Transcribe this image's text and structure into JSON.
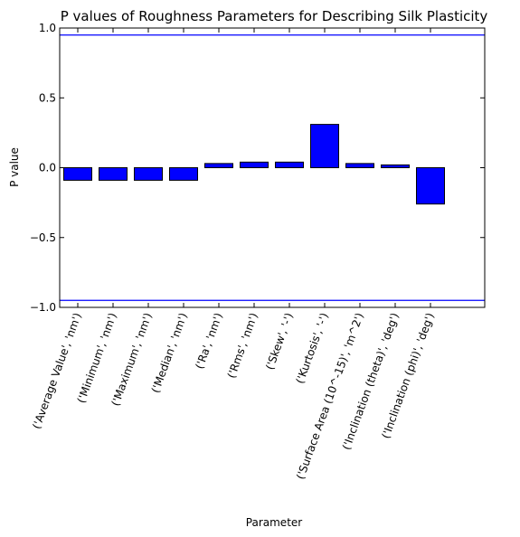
{
  "chart_data": {
    "type": "bar",
    "title": "P values of Roughness Parameters for Describing Silk Plasticity",
    "xlabel": "Parameter",
    "ylabel": "P value",
    "ylim": [
      -1.0,
      1.0
    ],
    "yticks": [
      -1.0,
      -0.5,
      0.0,
      0.5,
      1.0
    ],
    "ytick_labels": [
      "−1.0",
      "−0.5",
      "0.0",
      "0.5",
      "1.0"
    ],
    "categories": [
      "('Average Value', 'nm')",
      "('Minimum', 'nm')",
      "('Maximum', 'nm')",
      "('Median', 'nm')",
      "('Ra', 'nm')",
      "('Rms', 'nm')",
      "('Skew', '-')",
      "('Kurtosis', '-')",
      "('Surface Area (10^-15)', 'm^2')",
      "('Inclination (theta)', 'deg')",
      "('Inclination (phi)', 'deg')"
    ],
    "values": [
      -0.09,
      -0.09,
      -0.09,
      -0.09,
      0.03,
      0.04,
      0.04,
      0.31,
      0.03,
      0.02,
      -0.26
    ],
    "reference_lines": [
      0.95,
      -0.95
    ],
    "bar_color": "#0000ff",
    "line_color": "#0000ff",
    "grid": false
  }
}
